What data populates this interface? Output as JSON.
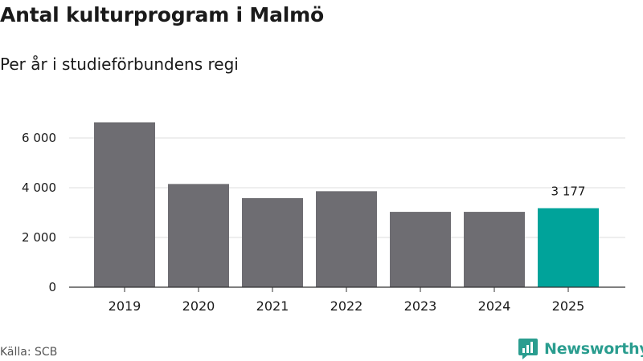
{
  "header": {
    "title": "Antal kulturprogram i Malmö",
    "subtitle": "Per år i studieförbundens regi"
  },
  "footer": {
    "source": "Källa: SCB",
    "brand": "Newsworthy",
    "brand_icon": "bar-chart-speech-bubble-icon"
  },
  "colors": {
    "bar": "#6e6d72",
    "highlight": "#00a39a",
    "grid": "#dddddd",
    "brand": "#2a9d8f"
  },
  "chart_data": {
    "type": "bar",
    "title": "Antal kulturprogram i Malmö",
    "subtitle": "Per år i studieförbundens regi",
    "categories": [
      "2019",
      "2020",
      "2021",
      "2022",
      "2023",
      "2024",
      "2025"
    ],
    "values": [
      6630,
      4150,
      3580,
      3860,
      3030,
      3030,
      3177
    ],
    "highlight_index": 6,
    "data_labels": [
      {
        "index": 6,
        "text": "3 177"
      }
    ],
    "ylim": [
      0,
      6600
    ],
    "yticks": [
      0,
      2000,
      4000,
      6000
    ],
    "ytick_labels": [
      "0",
      "2 000",
      "4 000",
      "6 000"
    ],
    "grid": true,
    "legend": "none"
  }
}
